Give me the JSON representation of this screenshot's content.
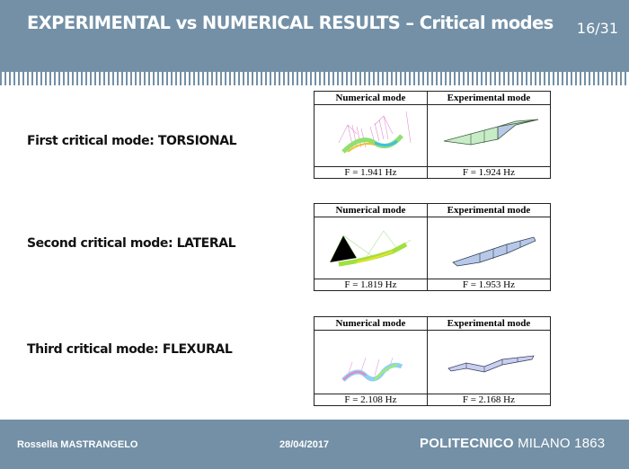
{
  "header": {
    "title": "EXPERIMENTAL vs NUMERICAL RESULTS – Critical modes",
    "page": "16/31"
  },
  "modes": [
    {
      "label": "First critical mode: TORSIONAL",
      "col1": "Numerical mode",
      "col2": "Experimental mode",
      "f_num": "F = 1.941 Hz",
      "f_exp": "F = 1.924 Hz"
    },
    {
      "label": "Second critical mode: LATERAL",
      "col1": "Numerical mode",
      "col2": "Experimental mode",
      "f_num": "F = 1.819 Hz",
      "f_exp": "F = 1.953 Hz"
    },
    {
      "label": "Third critical mode: FLEXURAL",
      "col1": "Numerical mode",
      "col2": "Experimental mode",
      "f_num": "F = 2.108 Hz",
      "f_exp": "F = 2.168 Hz"
    }
  ],
  "footer": {
    "author": "Rossella MASTRANGELO",
    "date": "28/04/2017",
    "brand_bold": "POLITECNICO",
    "brand_rest": " MILANO 1863"
  },
  "colors": {
    "header_bg": "#7390a6",
    "mesh_green": "#c8ecc8",
    "mesh_blue": "#b8c8e8"
  }
}
